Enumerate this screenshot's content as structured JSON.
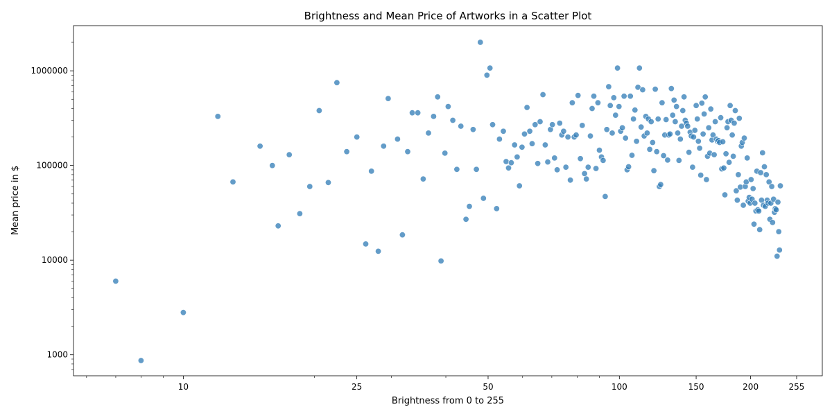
{
  "chart_data": {
    "type": "scatter",
    "title": "Brightness and Mean Price of Artworks in a Scatter Plot",
    "xlabel": "Brightness from 0 to 255",
    "ylabel": "Mean price in $",
    "x_scale": "log",
    "y_scale": "log",
    "xlim": [
      5.6,
      292
    ],
    "ylim": [
      600,
      3000000
    ],
    "grid": false,
    "color": "#2f7bb6",
    "x_ticks": [
      {
        "value": 10,
        "label": "10"
      },
      {
        "value": 25,
        "label": "25"
      },
      {
        "value": 50,
        "label": "50"
      },
      {
        "value": 100,
        "label": "100"
      },
      {
        "value": 150,
        "label": "150"
      },
      {
        "value": 200,
        "label": "200"
      },
      {
        "value": 255,
        "label": "255"
      }
    ],
    "y_ticks": [
      {
        "value": 1000,
        "label": "1000"
      },
      {
        "value": 10000,
        "label": "10000"
      },
      {
        "value": 100000,
        "label": "100000"
      },
      {
        "value": 1000000,
        "label": "1000000"
      }
    ],
    "points": [
      [
        7,
        6000
      ],
      [
        8,
        870
      ],
      [
        10,
        2800
      ],
      [
        12,
        330000
      ],
      [
        13,
        67000
      ],
      [
        15,
        160000
      ],
      [
        16,
        100000
      ],
      [
        16.5,
        23000
      ],
      [
        17.5,
        130000
      ],
      [
        18.5,
        31000
      ],
      [
        19.5,
        60000
      ],
      [
        20.5,
        380000
      ],
      [
        21.5,
        66000
      ],
      [
        22.5,
        750000
      ],
      [
        23.7,
        140000
      ],
      [
        25,
        200000
      ],
      [
        26.2,
        14800
      ],
      [
        27,
        87000
      ],
      [
        28,
        12400
      ],
      [
        28.8,
        160000
      ],
      [
        29.5,
        510000
      ],
      [
        31,
        190000
      ],
      [
        31.8,
        18500
      ],
      [
        32.7,
        140000
      ],
      [
        33.5,
        360000
      ],
      [
        34.5,
        360000
      ],
      [
        35.5,
        72000
      ],
      [
        36.5,
        220000
      ],
      [
        37.5,
        330000
      ],
      [
        38.3,
        530000
      ],
      [
        39,
        9800
      ],
      [
        39.8,
        135000
      ],
      [
        40.5,
        420000
      ],
      [
        41.5,
        300000
      ],
      [
        42.4,
        91000
      ],
      [
        43.3,
        260000
      ],
      [
        44.5,
        27000
      ],
      [
        45.3,
        37000
      ],
      [
        46.2,
        240000
      ],
      [
        47,
        91000
      ],
      [
        48,
        2000000
      ],
      [
        48.8,
        45000
      ],
      [
        49.7,
        900000
      ],
      [
        50.5,
        1070000
      ],
      [
        51.2,
        270000
      ],
      [
        52.3,
        35000
      ],
      [
        53.1,
        190000
      ],
      [
        54.2,
        230000
      ],
      [
        55,
        110000
      ],
      [
        55.7,
        94000
      ],
      [
        56.5,
        107000
      ],
      [
        57.5,
        165000
      ],
      [
        58.3,
        123000
      ],
      [
        59,
        61000
      ],
      [
        59.8,
        156000
      ],
      [
        60.6,
        215000
      ],
      [
        61.4,
        410000
      ],
      [
        62.3,
        230000
      ],
      [
        63.1,
        170000
      ],
      [
        64.1,
        270000
      ],
      [
        65,
        105000
      ],
      [
        65.8,
        290000
      ],
      [
        66.8,
        560000
      ],
      [
        67.6,
        165000
      ],
      [
        68.5,
        109000
      ],
      [
        69.5,
        240000
      ],
      [
        70.2,
        270000
      ],
      [
        71,
        120000
      ],
      [
        72,
        90000
      ],
      [
        73,
        280000
      ],
      [
        73.8,
        210000
      ],
      [
        74.5,
        230000
      ],
      [
        75.4,
        96000
      ],
      [
        76.2,
        200000
      ],
      [
        77.2,
        70000
      ],
      [
        78,
        460000
      ],
      [
        78.8,
        200000
      ],
      [
        79.6,
        210000
      ],
      [
        80.4,
        550000
      ],
      [
        81.4,
        118000
      ],
      [
        82.2,
        265000
      ],
      [
        83.2,
        82000
      ],
      [
        84,
        72000
      ],
      [
        84.8,
        96000
      ],
      [
        85.8,
        205000
      ],
      [
        86.6,
        400000
      ],
      [
        87.4,
        540000
      ],
      [
        88.4,
        93000
      ],
      [
        89.3,
        460000
      ],
      [
        90,
        145000
      ],
      [
        91,
        123000
      ],
      [
        91.8,
        113000
      ],
      [
        92.8,
        47000
      ],
      [
        93.6,
        240000
      ],
      [
        94.5,
        680000
      ],
      [
        95.3,
        430000
      ],
      [
        96.3,
        220000
      ],
      [
        97.1,
        520000
      ],
      [
        98,
        340000
      ],
      [
        99,
        1070000
      ],
      [
        99.8,
        420000
      ],
      [
        100.7,
        230000
      ],
      [
        101.6,
        250000
      ],
      [
        102.5,
        540000
      ],
      [
        103.3,
        195000
      ],
      [
        104.2,
        90000
      ],
      [
        105,
        97000
      ],
      [
        106,
        540000
      ],
      [
        106.9,
        128000
      ],
      [
        107.7,
        310000
      ],
      [
        108.6,
        385000
      ],
      [
        109.5,
        180000
      ],
      [
        110.3,
        670000
      ],
      [
        111.2,
        1070000
      ],
      [
        112.2,
        255000
      ],
      [
        113.1,
        630000
      ],
      [
        114,
        205000
      ],
      [
        115,
        330000
      ],
      [
        115.8,
        220000
      ],
      [
        116.6,
        310000
      ],
      [
        117.4,
        148000
      ],
      [
        118.3,
        290000
      ],
      [
        119.2,
        175000
      ],
      [
        120,
        88000
      ],
      [
        120.9,
        640000
      ],
      [
        121.8,
        140000
      ],
      [
        122.7,
        310000
      ],
      [
        123.5,
        60000
      ],
      [
        124.4,
        63000
      ],
      [
        125.3,
        460000
      ],
      [
        126.3,
        127000
      ],
      [
        127.1,
        210000
      ],
      [
        128,
        305000
      ],
      [
        129,
        114000
      ],
      [
        129.8,
        210000
      ],
      [
        130.7,
        215000
      ],
      [
        131.6,
        650000
      ],
      [
        132.5,
        340000
      ],
      [
        133.5,
        490000
      ],
      [
        134.3,
        290000
      ],
      [
        135.2,
        420000
      ],
      [
        136.1,
        220000
      ],
      [
        137,
        113000
      ],
      [
        138,
        190000
      ],
      [
        138.9,
        260000
      ],
      [
        139.8,
        380000
      ],
      [
        140.7,
        530000
      ],
      [
        141.6,
        300000
      ],
      [
        142.5,
        280000
      ],
      [
        143.4,
        260000
      ],
      [
        144.4,
        138000
      ],
      [
        145.3,
        225000
      ],
      [
        146.2,
        205000
      ],
      [
        147.2,
        96000
      ],
      [
        148,
        200000
      ],
      [
        149,
        235000
      ],
      [
        150,
        430000
      ],
      [
        150.9,
        310000
      ],
      [
        151.8,
        180000
      ],
      [
        152.8,
        152000
      ],
      [
        153.7,
        79000
      ],
      [
        154.6,
        455000
      ],
      [
        155.6,
        215000
      ],
      [
        156.5,
        350000
      ],
      [
        157.4,
        530000
      ],
      [
        158.4,
        71000
      ],
      [
        159.3,
        125000
      ],
      [
        160.3,
        250000
      ],
      [
        161.2,
        135000
      ],
      [
        162.1,
        395000
      ],
      [
        163.1,
        186000
      ],
      [
        164,
        210000
      ],
      [
        165,
        130000
      ],
      [
        165.9,
        290000
      ],
      [
        166.9,
        190000
      ],
      [
        167.9,
        180000
      ],
      [
        168.8,
        183000
      ],
      [
        169.8,
        175000
      ],
      [
        170.8,
        320000
      ],
      [
        171.7,
        92000
      ],
      [
        172.7,
        178000
      ],
      [
        173.6,
        94000
      ],
      [
        174.6,
        49000
      ],
      [
        175.6,
        133000
      ],
      [
        176.6,
        250000
      ],
      [
        177.5,
        290000
      ],
      [
        178.5,
        108000
      ],
      [
        179.5,
        430000
      ],
      [
        180.5,
        300000
      ],
      [
        181.5,
        210000
      ],
      [
        182.5,
        125000
      ],
      [
        183.4,
        280000
      ],
      [
        184.4,
        380000
      ],
      [
        185.4,
        54000
      ],
      [
        186.4,
        43000
      ],
      [
        187.4,
        80000
      ],
      [
        188.4,
        315000
      ],
      [
        189.4,
        59000
      ],
      [
        190.4,
        160000
      ],
      [
        191.4,
        175000
      ],
      [
        192.4,
        38000
      ],
      [
        193.4,
        195000
      ],
      [
        194.4,
        60000
      ],
      [
        195.4,
        67000
      ],
      [
        196.4,
        120000
      ],
      [
        197.4,
        42000
      ],
      [
        198.5,
        46000
      ],
      [
        199.5,
        40000
      ],
      [
        200.5,
        71000
      ],
      [
        201.5,
        44000
      ],
      [
        202.6,
        57000
      ],
      [
        203.6,
        24000
      ],
      [
        204.6,
        40000
      ],
      [
        205.7,
        33000
      ],
      [
        206.7,
        87000
      ],
      [
        207.7,
        34000
      ],
      [
        208.8,
        33000
      ],
      [
        209.8,
        21000
      ],
      [
        210.9,
        84000
      ],
      [
        211.9,
        43000
      ],
      [
        213,
        136000
      ],
      [
        214,
        38000
      ],
      [
        215.1,
        97000
      ],
      [
        216.1,
        37000
      ],
      [
        217.2,
        80000
      ],
      [
        218.3,
        43000
      ],
      [
        219.3,
        40000
      ],
      [
        220.4,
        67000
      ],
      [
        221.4,
        27000
      ],
      [
        222.5,
        40000
      ],
      [
        223.6,
        60000
      ],
      [
        224.6,
        25000
      ],
      [
        225.7,
        44000
      ],
      [
        226.8,
        32000
      ],
      [
        227.8,
        35000
      ],
      [
        228.9,
        34000
      ],
      [
        230,
        11000
      ],
      [
        231,
        41000
      ],
      [
        232,
        20000
      ],
      [
        233,
        12800
      ],
      [
        234,
        61000
      ]
    ]
  }
}
